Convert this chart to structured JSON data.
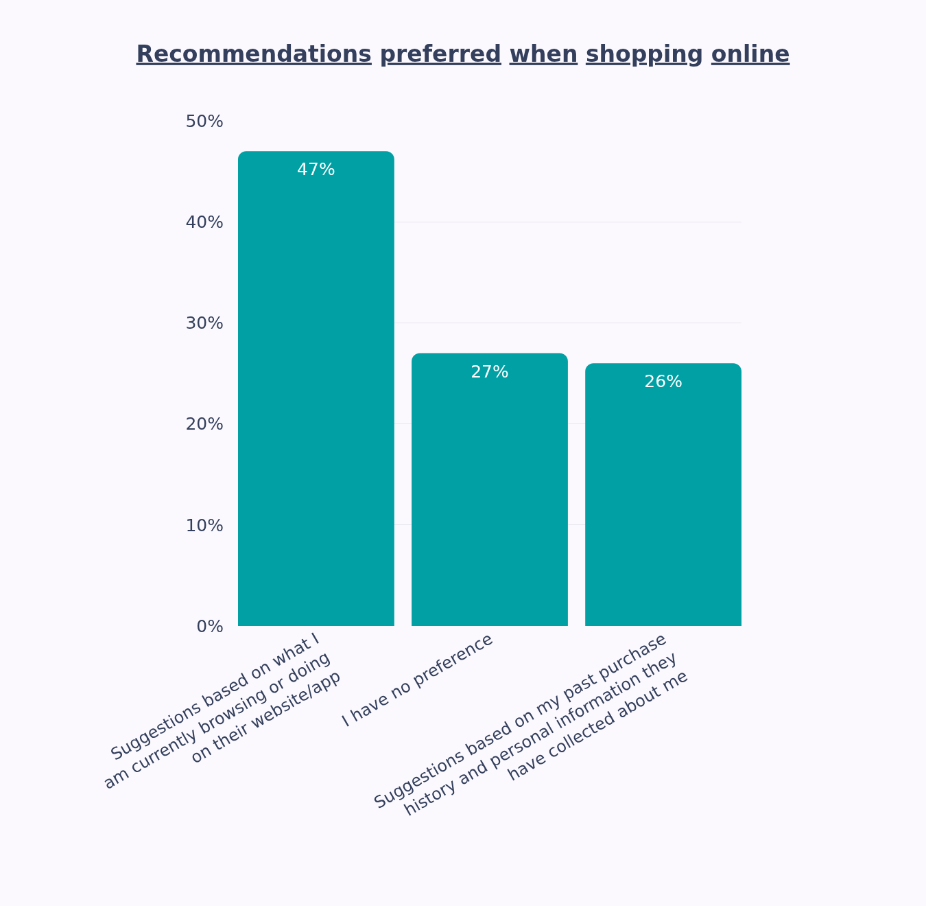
{
  "chart_data": {
    "type": "bar",
    "title": "Recommendations preferred when shopping online",
    "categories": [
      "Suggestions based on what I\nam currently browsing or doing\non their website/app",
      "I have no preference",
      "Suggestions based on my past purchase\nhistory and personal information they\nhave collected about me"
    ],
    "values": [
      47,
      27,
      26
    ],
    "color": "#00a0a4",
    "value_labels": [
      "47%",
      "27%",
      "26%"
    ],
    "ylim": [
      0,
      50
    ],
    "yticks": [
      {
        "value": 0,
        "label": "0%"
      },
      {
        "value": 10,
        "label": "10%"
      },
      {
        "value": 20,
        "label": "20%"
      },
      {
        "value": 30,
        "label": "30%"
      },
      {
        "value": 40,
        "label": "40%"
      },
      {
        "value": 50,
        "label": "50%"
      }
    ],
    "grid": "y"
  }
}
